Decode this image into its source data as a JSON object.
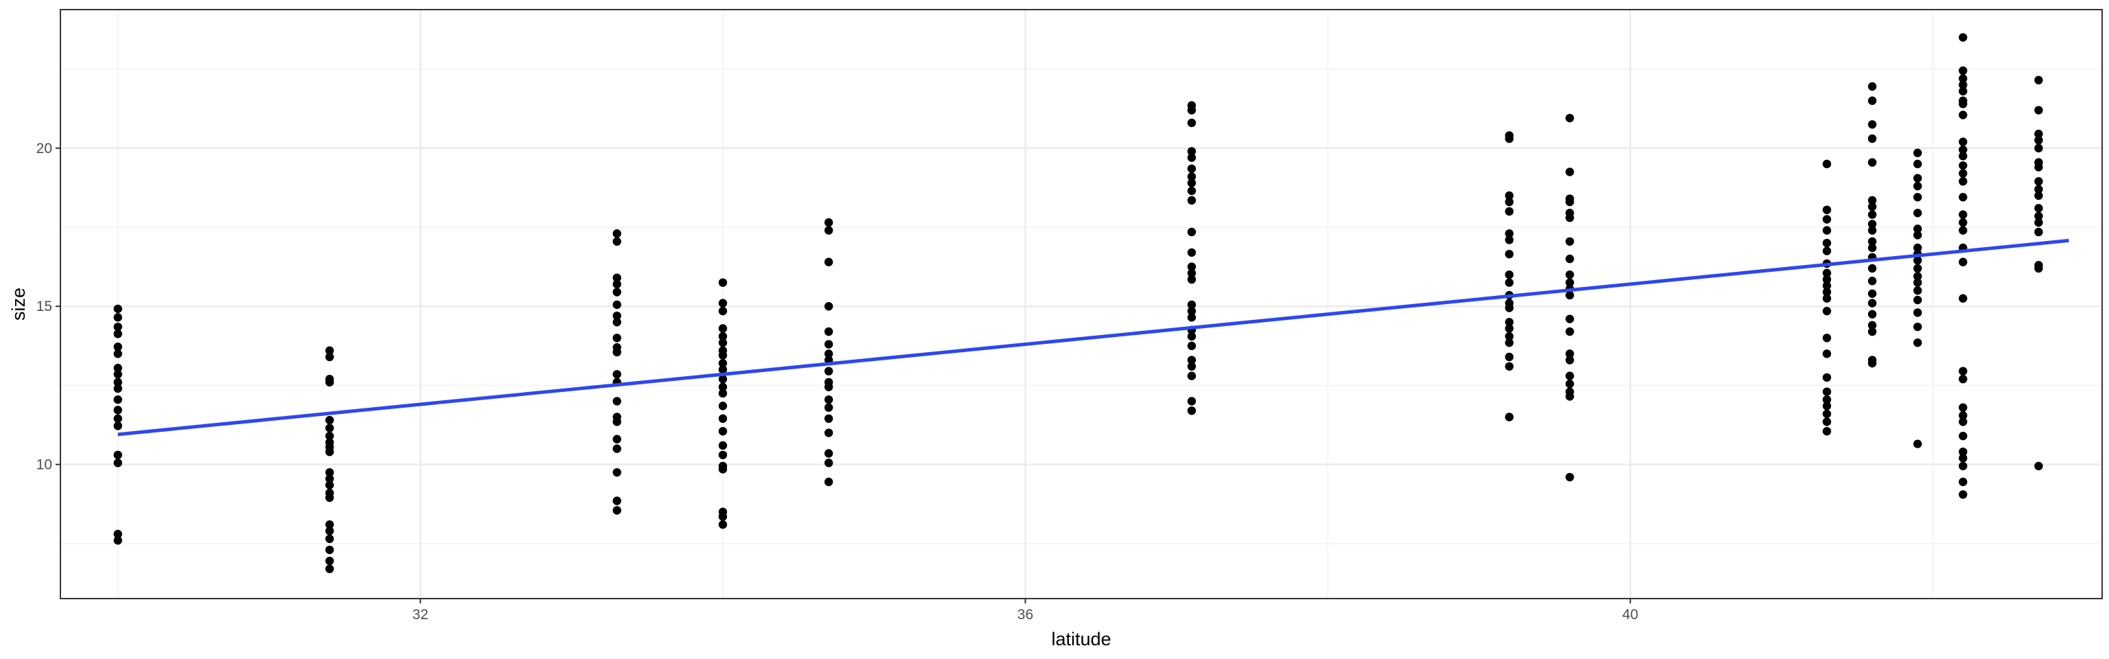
{
  "chart_data": {
    "type": "scatter",
    "title": "",
    "xlabel": "latitude",
    "ylabel": "size",
    "xlim": [
      29.62,
      43.12
    ],
    "ylim": [
      5.76,
      24.38
    ],
    "x_ticks": [
      32,
      36,
      40
    ],
    "y_ticks": [
      10,
      15,
      20
    ],
    "x_minor": [
      30,
      34,
      38,
      42
    ],
    "y_minor": [
      7.5,
      12.5,
      17.5,
      22.5
    ],
    "grid": true,
    "point_color": "#000000",
    "trend": {
      "type": "linear",
      "color": "#2d48f0",
      "x": [
        30.0,
        42.9
      ],
      "y": [
        10.95,
        17.08
      ]
    },
    "series": [
      {
        "values": [
          [
            30.0,
            14.92
          ],
          [
            30.0,
            14.65
          ],
          [
            30.0,
            14.35
          ],
          [
            30.0,
            14.13
          ],
          [
            30.0,
            13.72
          ],
          [
            30.0,
            13.5
          ],
          [
            30.0,
            13.05
          ],
          [
            30.0,
            12.85
          ],
          [
            30.0,
            12.6
          ],
          [
            30.0,
            12.4
          ],
          [
            30.0,
            12.05
          ],
          [
            30.0,
            11.72
          ],
          [
            30.0,
            11.45
          ],
          [
            30.0,
            11.22
          ],
          [
            30.0,
            10.3
          ],
          [
            30.0,
            10.05
          ],
          [
            30.0,
            7.8
          ],
          [
            30.0,
            7.6
          ],
          [
            31.4,
            13.6
          ],
          [
            31.4,
            13.4
          ],
          [
            31.4,
            12.7
          ],
          [
            31.4,
            12.6
          ],
          [
            31.4,
            11.4
          ],
          [
            31.4,
            11.15
          ],
          [
            31.4,
            10.9
          ],
          [
            31.4,
            10.7
          ],
          [
            31.4,
            10.55
          ],
          [
            31.4,
            10.4
          ],
          [
            31.4,
            9.75
          ],
          [
            31.4,
            9.55
          ],
          [
            31.4,
            9.35
          ],
          [
            31.4,
            9.1
          ],
          [
            31.4,
            8.95
          ],
          [
            31.4,
            8.1
          ],
          [
            31.4,
            7.9
          ],
          [
            31.4,
            7.65
          ],
          [
            31.4,
            7.3
          ],
          [
            31.4,
            6.95
          ],
          [
            31.4,
            6.7
          ],
          [
            33.3,
            17.3
          ],
          [
            33.3,
            17.05
          ],
          [
            33.3,
            15.9
          ],
          [
            33.3,
            15.7
          ],
          [
            33.3,
            15.45
          ],
          [
            33.3,
            15.05
          ],
          [
            33.3,
            14.7
          ],
          [
            33.3,
            14.5
          ],
          [
            33.3,
            14.0
          ],
          [
            33.3,
            13.7
          ],
          [
            33.3,
            13.55
          ],
          [
            33.3,
            12.85
          ],
          [
            33.3,
            12.6
          ],
          [
            33.3,
            12.0
          ],
          [
            33.3,
            11.5
          ],
          [
            33.3,
            11.35
          ],
          [
            33.3,
            10.8
          ],
          [
            33.3,
            10.5
          ],
          [
            33.3,
            9.75
          ],
          [
            33.3,
            8.85
          ],
          [
            33.3,
            8.55
          ],
          [
            34.0,
            15.75
          ],
          [
            34.0,
            15.1
          ],
          [
            34.0,
            14.85
          ],
          [
            34.0,
            14.3
          ],
          [
            34.0,
            14.05
          ],
          [
            34.0,
            13.85
          ],
          [
            34.0,
            13.6
          ],
          [
            34.0,
            13.45
          ],
          [
            34.0,
            13.2
          ],
          [
            34.0,
            13.0
          ],
          [
            34.0,
            12.7
          ],
          [
            34.0,
            12.45
          ],
          [
            34.0,
            12.25
          ],
          [
            34.0,
            11.85
          ],
          [
            34.0,
            11.45
          ],
          [
            34.0,
            11.05
          ],
          [
            34.0,
            10.6
          ],
          [
            34.0,
            10.3
          ],
          [
            34.0,
            9.95
          ],
          [
            34.0,
            9.85
          ],
          [
            34.0,
            8.5
          ],
          [
            34.0,
            8.35
          ],
          [
            34.0,
            8.1
          ],
          [
            34.7,
            17.65
          ],
          [
            34.7,
            17.4
          ],
          [
            34.7,
            16.4
          ],
          [
            34.7,
            15.0
          ],
          [
            34.7,
            14.2
          ],
          [
            34.7,
            13.8
          ],
          [
            34.7,
            13.5
          ],
          [
            34.7,
            13.3
          ],
          [
            34.7,
            12.95
          ],
          [
            34.7,
            12.6
          ],
          [
            34.7,
            12.45
          ],
          [
            34.7,
            12.05
          ],
          [
            34.7,
            11.8
          ],
          [
            34.7,
            11.45
          ],
          [
            34.7,
            11.0
          ],
          [
            34.7,
            10.35
          ],
          [
            34.7,
            10.05
          ],
          [
            34.7,
            9.45
          ],
          [
            37.1,
            21.35
          ],
          [
            37.1,
            21.2
          ],
          [
            37.1,
            20.8
          ],
          [
            37.1,
            19.9
          ],
          [
            37.1,
            19.7
          ],
          [
            37.1,
            19.35
          ],
          [
            37.1,
            19.1
          ],
          [
            37.1,
            18.9
          ],
          [
            37.1,
            18.65
          ],
          [
            37.1,
            18.35
          ],
          [
            37.1,
            17.35
          ],
          [
            37.1,
            16.7
          ],
          [
            37.1,
            16.25
          ],
          [
            37.1,
            16.05
          ],
          [
            37.1,
            15.85
          ],
          [
            37.1,
            15.05
          ],
          [
            37.1,
            14.85
          ],
          [
            37.1,
            14.65
          ],
          [
            37.1,
            14.25
          ],
          [
            37.1,
            14.05
          ],
          [
            37.1,
            13.75
          ],
          [
            37.1,
            13.3
          ],
          [
            37.1,
            13.1
          ],
          [
            37.1,
            12.8
          ],
          [
            37.1,
            12.0
          ],
          [
            37.1,
            11.7
          ],
          [
            39.2,
            20.4
          ],
          [
            39.2,
            20.3
          ],
          [
            39.2,
            18.5
          ],
          [
            39.2,
            18.3
          ],
          [
            39.2,
            18.0
          ],
          [
            39.2,
            17.3
          ],
          [
            39.2,
            17.1
          ],
          [
            39.2,
            16.65
          ],
          [
            39.2,
            16.0
          ],
          [
            39.2,
            15.75
          ],
          [
            39.2,
            15.35
          ],
          [
            39.2,
            15.1
          ],
          [
            39.2,
            14.95
          ],
          [
            39.2,
            14.5
          ],
          [
            39.2,
            14.3
          ],
          [
            39.2,
            14.05
          ],
          [
            39.2,
            13.85
          ],
          [
            39.2,
            13.4
          ],
          [
            39.2,
            13.1
          ],
          [
            39.2,
            11.5
          ],
          [
            39.6,
            20.95
          ],
          [
            39.6,
            19.25
          ],
          [
            39.6,
            18.4
          ],
          [
            39.6,
            18.3
          ],
          [
            39.6,
            17.95
          ],
          [
            39.6,
            17.8
          ],
          [
            39.6,
            17.05
          ],
          [
            39.6,
            16.5
          ],
          [
            39.6,
            16.0
          ],
          [
            39.6,
            15.75
          ],
          [
            39.6,
            15.55
          ],
          [
            39.6,
            15.35
          ],
          [
            39.6,
            14.6
          ],
          [
            39.6,
            14.2
          ],
          [
            39.6,
            13.5
          ],
          [
            39.6,
            13.3
          ],
          [
            39.6,
            12.8
          ],
          [
            39.6,
            12.55
          ],
          [
            39.6,
            12.3
          ],
          [
            39.6,
            12.15
          ],
          [
            39.6,
            9.6
          ],
          [
            41.3,
            19.5
          ],
          [
            41.3,
            18.05
          ],
          [
            41.3,
            17.75
          ],
          [
            41.3,
            17.4
          ],
          [
            41.3,
            17.0
          ],
          [
            41.3,
            16.75
          ],
          [
            41.3,
            16.35
          ],
          [
            41.3,
            16.05
          ],
          [
            41.3,
            15.85
          ],
          [
            41.3,
            15.65
          ],
          [
            41.3,
            15.45
          ],
          [
            41.3,
            15.25
          ],
          [
            41.3,
            14.85
          ],
          [
            41.3,
            14.0
          ],
          [
            41.3,
            13.5
          ],
          [
            41.3,
            12.75
          ],
          [
            41.3,
            12.3
          ],
          [
            41.3,
            12.05
          ],
          [
            41.3,
            11.85
          ],
          [
            41.3,
            11.6
          ],
          [
            41.3,
            11.35
          ],
          [
            41.3,
            11.05
          ],
          [
            41.6,
            21.95
          ],
          [
            41.6,
            21.5
          ],
          [
            41.6,
            20.75
          ],
          [
            41.6,
            20.3
          ],
          [
            41.6,
            19.55
          ],
          [
            41.6,
            18.35
          ],
          [
            41.6,
            18.15
          ],
          [
            41.6,
            17.9
          ],
          [
            41.6,
            17.6
          ],
          [
            41.6,
            17.4
          ],
          [
            41.6,
            17.05
          ],
          [
            41.6,
            16.85
          ],
          [
            41.6,
            16.55
          ],
          [
            41.6,
            16.2
          ],
          [
            41.6,
            15.8
          ],
          [
            41.6,
            15.4
          ],
          [
            41.6,
            15.1
          ],
          [
            41.6,
            14.75
          ],
          [
            41.6,
            14.4
          ],
          [
            41.6,
            14.2
          ],
          [
            41.6,
            13.3
          ],
          [
            41.6,
            13.2
          ],
          [
            41.9,
            19.85
          ],
          [
            41.9,
            19.5
          ],
          [
            41.9,
            19.05
          ],
          [
            41.9,
            18.8
          ],
          [
            41.9,
            18.45
          ],
          [
            41.9,
            17.95
          ],
          [
            41.9,
            17.45
          ],
          [
            41.9,
            17.25
          ],
          [
            41.9,
            16.85
          ],
          [
            41.9,
            16.65
          ],
          [
            41.9,
            16.45
          ],
          [
            41.9,
            16.2
          ],
          [
            41.9,
            15.95
          ],
          [
            41.9,
            15.75
          ],
          [
            41.9,
            15.5
          ],
          [
            41.9,
            15.2
          ],
          [
            41.9,
            14.8
          ],
          [
            41.9,
            14.35
          ],
          [
            41.9,
            13.85
          ],
          [
            41.9,
            10.65
          ],
          [
            42.2,
            23.5
          ],
          [
            42.2,
            22.45
          ],
          [
            42.2,
            22.2
          ],
          [
            42.2,
            22.0
          ],
          [
            42.2,
            21.8
          ],
          [
            42.2,
            21.5
          ],
          [
            42.2,
            21.4
          ],
          [
            42.2,
            21.05
          ],
          [
            42.2,
            20.2
          ],
          [
            42.2,
            19.95
          ],
          [
            42.2,
            19.75
          ],
          [
            42.2,
            19.45
          ],
          [
            42.2,
            19.2
          ],
          [
            42.2,
            18.95
          ],
          [
            42.2,
            18.45
          ],
          [
            42.2,
            17.9
          ],
          [
            42.2,
            17.65
          ],
          [
            42.2,
            17.4
          ],
          [
            42.2,
            16.85
          ],
          [
            42.2,
            16.4
          ],
          [
            42.2,
            15.25
          ],
          [
            42.2,
            12.95
          ],
          [
            42.2,
            12.7
          ],
          [
            42.2,
            11.8
          ],
          [
            42.2,
            11.55
          ],
          [
            42.2,
            11.35
          ],
          [
            42.2,
            10.9
          ],
          [
            42.2,
            10.4
          ],
          [
            42.2,
            10.2
          ],
          [
            42.2,
            9.95
          ],
          [
            42.2,
            9.45
          ],
          [
            42.2,
            9.05
          ],
          [
            42.7,
            22.15
          ],
          [
            42.7,
            21.2
          ],
          [
            42.7,
            20.45
          ],
          [
            42.7,
            20.25
          ],
          [
            42.7,
            20.0
          ],
          [
            42.7,
            19.55
          ],
          [
            42.7,
            19.4
          ],
          [
            42.7,
            18.95
          ],
          [
            42.7,
            18.7
          ],
          [
            42.7,
            18.5
          ],
          [
            42.7,
            18.1
          ],
          [
            42.7,
            17.85
          ],
          [
            42.7,
            17.65
          ],
          [
            42.7,
            17.35
          ],
          [
            42.7,
            16.3
          ],
          [
            42.7,
            16.2
          ],
          [
            42.7,
            9.95
          ]
        ]
      }
    ]
  }
}
